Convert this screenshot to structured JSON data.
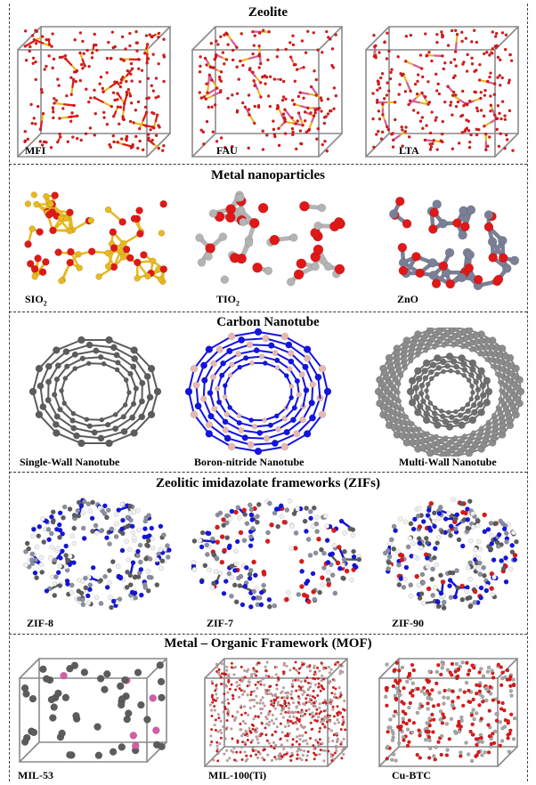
{
  "sections": [
    {
      "title": "Zeolite",
      "items": [
        "MFI",
        "FAU",
        "LTA"
      ]
    },
    {
      "title": "Metal nanoparticles",
      "items": [
        "SIO",
        "TIO",
        "ZnO"
      ],
      "subscripts": [
        "2",
        "2",
        ""
      ]
    },
    {
      "title": "Carbon Nanotube",
      "items": [
        "Single-Wall Nanotube",
        "Boron-nitride Nanotube",
        "Multi-Wall Nanotube"
      ]
    },
    {
      "title": "Zeolitic imidazolate frameworks (ZIFs)",
      "items": [
        "ZIF-8",
        "ZIF-7",
        "ZIF-90"
      ]
    },
    {
      "title": "Metal – Organic Framework (MOF)",
      "items": [
        "MIL-53",
        "MIL-100(Ti)",
        "Cu-BTC"
      ]
    }
  ],
  "colors": {
    "oxygen": "#e01818",
    "silicon": "#e8b820",
    "titanium": "#b4b4b4",
    "zinc": "#7a7f96",
    "carbon": "#5c5c5c",
    "boron": "#e8b8b0",
    "nitrogen": "#1414e0",
    "hydrogen": "#f0f0f0",
    "zeolite_t": "#d45ca8"
  }
}
